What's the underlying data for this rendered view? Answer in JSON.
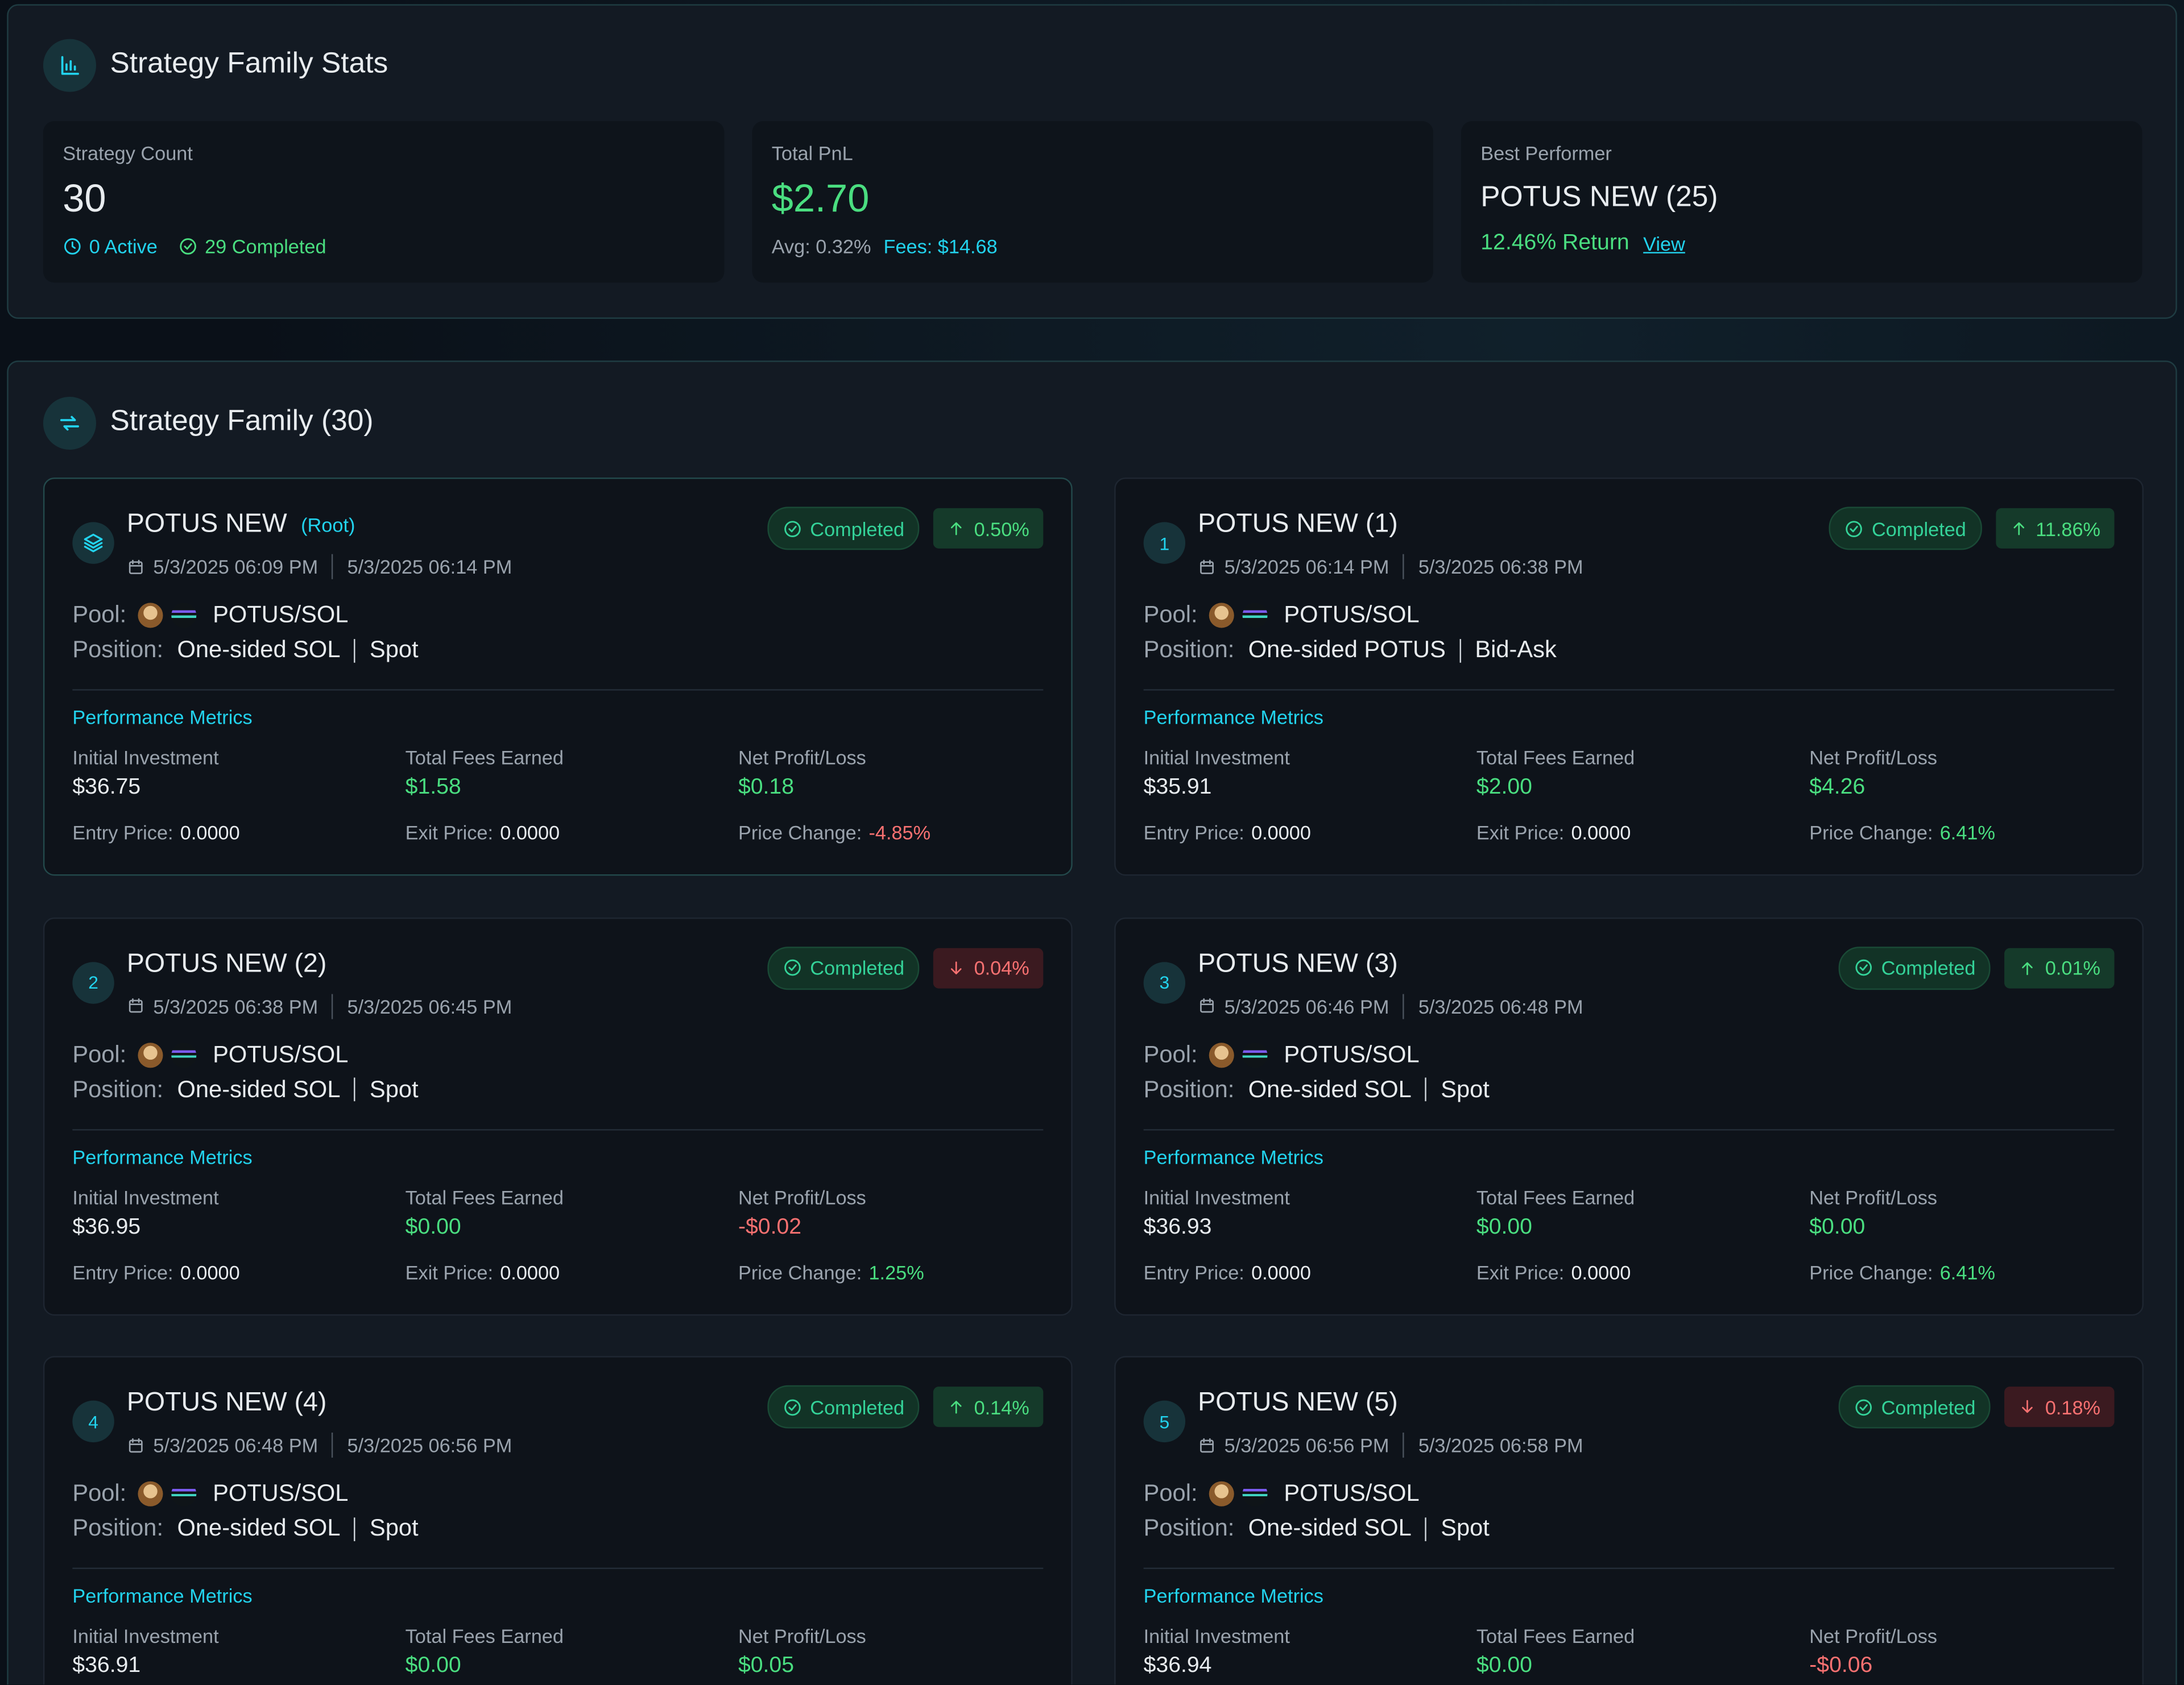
{
  "stats": {
    "title": "Strategy Family Stats",
    "cards": {
      "count": {
        "label": "Strategy Count",
        "value": "30",
        "active": "0 Active",
        "completed": "29 Completed"
      },
      "pnl": {
        "label": "Total PnL",
        "value": "$2.70",
        "avg": "Avg: 0.32%",
        "fees": "Fees: $14.68"
      },
      "best": {
        "label": "Best Performer",
        "name": "POTUS NEW (25)",
        "return": "12.46% Return",
        "link": "View"
      }
    }
  },
  "family": {
    "title": "Strategy Family (30)",
    "labels": {
      "pool": "Pool:",
      "position": "Position:",
      "metrics": "Performance Metrics",
      "initial": "Initial Investment",
      "fees": "Total Fees Earned",
      "net": "Net Profit/Loss",
      "entry": "Entry Price:",
      "exit": "Exit Price:",
      "change": "Price Change:"
    },
    "strategies": [
      {
        "name": "POTUS NEW",
        "tag": "(Root)",
        "status": "Completed",
        "change": "0.50%",
        "direction": "up",
        "start": "5/3/2025 06:09 PM",
        "end": "5/3/2025 06:14 PM",
        "pair": "POTUS/SOL",
        "side": "One-sided SOL",
        "shape": "Spot",
        "initial": "$36.75",
        "fees": "$1.58",
        "net": "$0.18",
        "entry": "0.0000",
        "exit": "0.0000",
        "price_change": "-4.85%"
      },
      {
        "badge": "1",
        "name": "POTUS NEW (1)",
        "status": "Completed",
        "change": "11.86%",
        "direction": "up",
        "start": "5/3/2025 06:14 PM",
        "end": "5/3/2025 06:38 PM",
        "pair": "POTUS/SOL",
        "side": "One-sided POTUS",
        "shape": "Bid-Ask",
        "initial": "$35.91",
        "fees": "$2.00",
        "net": "$4.26",
        "entry": "0.0000",
        "exit": "0.0000",
        "price_change": "6.41%"
      },
      {
        "badge": "2",
        "name": "POTUS NEW (2)",
        "status": "Completed",
        "change": "0.04%",
        "direction": "down",
        "start": "5/3/2025 06:38 PM",
        "end": "5/3/2025 06:45 PM",
        "pair": "POTUS/SOL",
        "side": "One-sided SOL",
        "shape": "Spot",
        "initial": "$36.95",
        "fees": "$0.00",
        "net": "-$0.02",
        "entry": "0.0000",
        "exit": "0.0000",
        "price_change": "1.25%"
      },
      {
        "badge": "3",
        "name": "POTUS NEW (3)",
        "status": "Completed",
        "change": "0.01%",
        "direction": "up",
        "start": "5/3/2025 06:46 PM",
        "end": "5/3/2025 06:48 PM",
        "pair": "POTUS/SOL",
        "side": "One-sided SOL",
        "shape": "Spot",
        "initial": "$36.93",
        "fees": "$0.00",
        "net": "$0.00",
        "entry": "0.0000",
        "exit": "0.0000",
        "price_change": "6.41%"
      },
      {
        "badge": "4",
        "name": "POTUS NEW (4)",
        "status": "Completed",
        "change": "0.14%",
        "direction": "up",
        "start": "5/3/2025 06:48 PM",
        "end": "5/3/2025 06:56 PM",
        "pair": "POTUS/SOL",
        "side": "One-sided SOL",
        "shape": "Spot",
        "initial": "$36.91",
        "fees": "$0.00",
        "net": "$0.05"
      },
      {
        "badge": "5",
        "name": "POTUS NEW (5)",
        "status": "Completed",
        "change": "0.18%",
        "direction": "down",
        "start": "5/3/2025 06:56 PM",
        "end": "5/3/2025 06:58 PM",
        "pair": "POTUS/SOL",
        "side": "One-sided SOL",
        "shape": "Spot",
        "initial": "$36.94",
        "fees": "$0.00",
        "net": "-$0.06"
      }
    ]
  }
}
